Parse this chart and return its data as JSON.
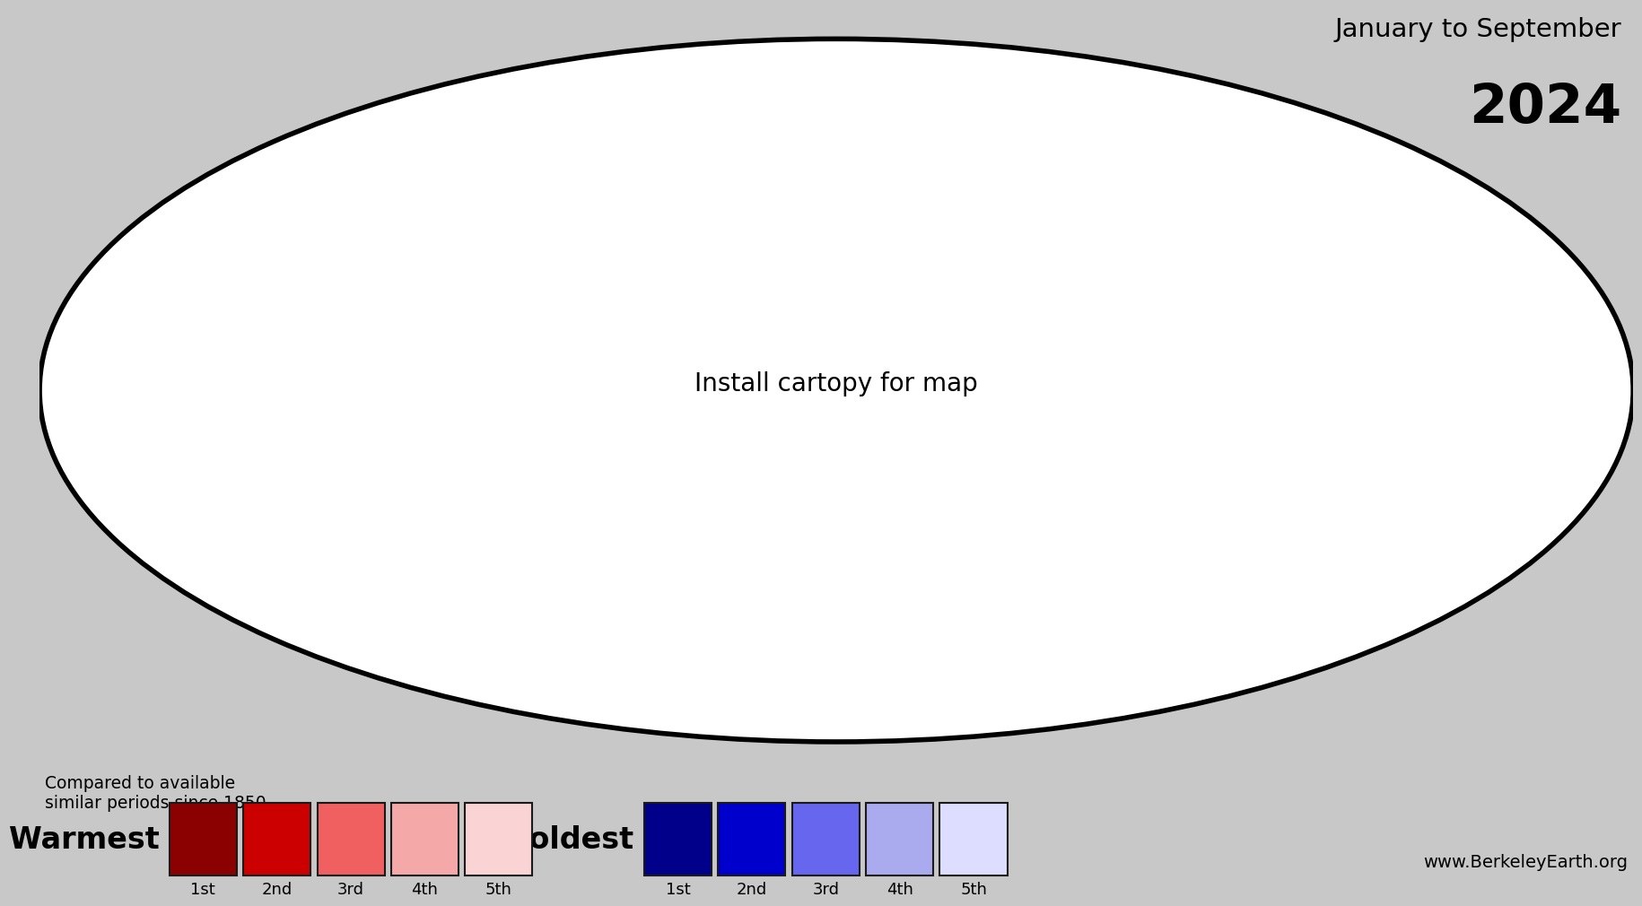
{
  "title_line1": "January to September",
  "title_line2": "2024",
  "subtitle": "Compared to available\nsimilar periods since 1850",
  "website": "www.BerkeleyEarth.org",
  "background_color": "#c8c8c8",
  "map_bg_color": "#ffffff",
  "warm_colors": [
    "#8b0000",
    "#cc0000",
    "#f06060",
    "#f5a8a8",
    "#fad4d4"
  ],
  "cold_colors": [
    "#00008b",
    "#0000cc",
    "#6666ee",
    "#aaaaee",
    "#ddddff"
  ],
  "warm_labels": [
    "1st",
    "2nd",
    "3rd",
    "4th",
    "5th"
  ],
  "cold_labels": [
    "1st",
    "2nd",
    "3rd",
    "4th",
    "5th"
  ],
  "warmest_label": "Warmest",
  "coldest_label": "Coldest",
  "figsize": [
    18.31,
    10.08
  ],
  "dpi": 100
}
